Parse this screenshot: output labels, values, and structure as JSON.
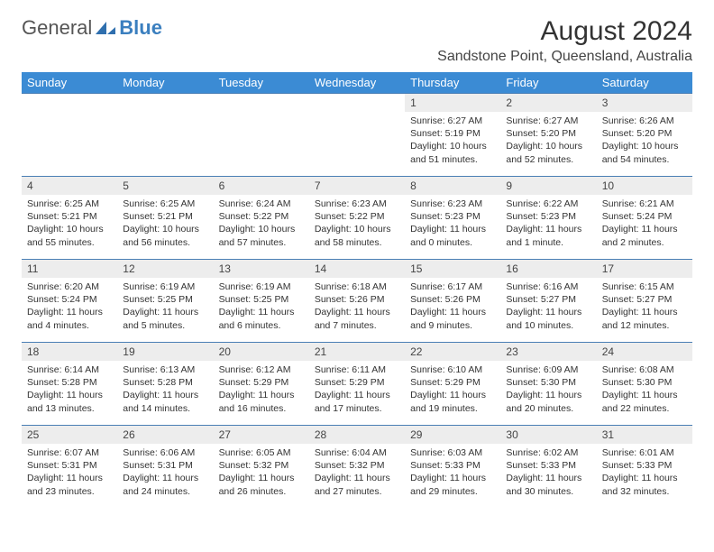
{
  "logo": {
    "text1": "General",
    "text2": "Blue"
  },
  "title": "August 2024",
  "location": "Sandstone Point, Queensland, Australia",
  "colors": {
    "header_bg": "#3b8bd4",
    "header_fg": "#ffffff",
    "daynum_bg": "#ededed",
    "row_border": "#4a7fb5",
    "logo_blue": "#3b7fbf"
  },
  "day_names": [
    "Sunday",
    "Monday",
    "Tuesday",
    "Wednesday",
    "Thursday",
    "Friday",
    "Saturday"
  ],
  "weeks": [
    [
      {
        "n": "",
        "sr": "",
        "ss": "",
        "dl": ""
      },
      {
        "n": "",
        "sr": "",
        "ss": "",
        "dl": ""
      },
      {
        "n": "",
        "sr": "",
        "ss": "",
        "dl": ""
      },
      {
        "n": "",
        "sr": "",
        "ss": "",
        "dl": ""
      },
      {
        "n": "1",
        "sr": "Sunrise: 6:27 AM",
        "ss": "Sunset: 5:19 PM",
        "dl": "Daylight: 10 hours and 51 minutes."
      },
      {
        "n": "2",
        "sr": "Sunrise: 6:27 AM",
        "ss": "Sunset: 5:20 PM",
        "dl": "Daylight: 10 hours and 52 minutes."
      },
      {
        "n": "3",
        "sr": "Sunrise: 6:26 AM",
        "ss": "Sunset: 5:20 PM",
        "dl": "Daylight: 10 hours and 54 minutes."
      }
    ],
    [
      {
        "n": "4",
        "sr": "Sunrise: 6:25 AM",
        "ss": "Sunset: 5:21 PM",
        "dl": "Daylight: 10 hours and 55 minutes."
      },
      {
        "n": "5",
        "sr": "Sunrise: 6:25 AM",
        "ss": "Sunset: 5:21 PM",
        "dl": "Daylight: 10 hours and 56 minutes."
      },
      {
        "n": "6",
        "sr": "Sunrise: 6:24 AM",
        "ss": "Sunset: 5:22 PM",
        "dl": "Daylight: 10 hours and 57 minutes."
      },
      {
        "n": "7",
        "sr": "Sunrise: 6:23 AM",
        "ss": "Sunset: 5:22 PM",
        "dl": "Daylight: 10 hours and 58 minutes."
      },
      {
        "n": "8",
        "sr": "Sunrise: 6:23 AM",
        "ss": "Sunset: 5:23 PM",
        "dl": "Daylight: 11 hours and 0 minutes."
      },
      {
        "n": "9",
        "sr": "Sunrise: 6:22 AM",
        "ss": "Sunset: 5:23 PM",
        "dl": "Daylight: 11 hours and 1 minute."
      },
      {
        "n": "10",
        "sr": "Sunrise: 6:21 AM",
        "ss": "Sunset: 5:24 PM",
        "dl": "Daylight: 11 hours and 2 minutes."
      }
    ],
    [
      {
        "n": "11",
        "sr": "Sunrise: 6:20 AM",
        "ss": "Sunset: 5:24 PM",
        "dl": "Daylight: 11 hours and 4 minutes."
      },
      {
        "n": "12",
        "sr": "Sunrise: 6:19 AM",
        "ss": "Sunset: 5:25 PM",
        "dl": "Daylight: 11 hours and 5 minutes."
      },
      {
        "n": "13",
        "sr": "Sunrise: 6:19 AM",
        "ss": "Sunset: 5:25 PM",
        "dl": "Daylight: 11 hours and 6 minutes."
      },
      {
        "n": "14",
        "sr": "Sunrise: 6:18 AM",
        "ss": "Sunset: 5:26 PM",
        "dl": "Daylight: 11 hours and 7 minutes."
      },
      {
        "n": "15",
        "sr": "Sunrise: 6:17 AM",
        "ss": "Sunset: 5:26 PM",
        "dl": "Daylight: 11 hours and 9 minutes."
      },
      {
        "n": "16",
        "sr": "Sunrise: 6:16 AM",
        "ss": "Sunset: 5:27 PM",
        "dl": "Daylight: 11 hours and 10 minutes."
      },
      {
        "n": "17",
        "sr": "Sunrise: 6:15 AM",
        "ss": "Sunset: 5:27 PM",
        "dl": "Daylight: 11 hours and 12 minutes."
      }
    ],
    [
      {
        "n": "18",
        "sr": "Sunrise: 6:14 AM",
        "ss": "Sunset: 5:28 PM",
        "dl": "Daylight: 11 hours and 13 minutes."
      },
      {
        "n": "19",
        "sr": "Sunrise: 6:13 AM",
        "ss": "Sunset: 5:28 PM",
        "dl": "Daylight: 11 hours and 14 minutes."
      },
      {
        "n": "20",
        "sr": "Sunrise: 6:12 AM",
        "ss": "Sunset: 5:29 PM",
        "dl": "Daylight: 11 hours and 16 minutes."
      },
      {
        "n": "21",
        "sr": "Sunrise: 6:11 AM",
        "ss": "Sunset: 5:29 PM",
        "dl": "Daylight: 11 hours and 17 minutes."
      },
      {
        "n": "22",
        "sr": "Sunrise: 6:10 AM",
        "ss": "Sunset: 5:29 PM",
        "dl": "Daylight: 11 hours and 19 minutes."
      },
      {
        "n": "23",
        "sr": "Sunrise: 6:09 AM",
        "ss": "Sunset: 5:30 PM",
        "dl": "Daylight: 11 hours and 20 minutes."
      },
      {
        "n": "24",
        "sr": "Sunrise: 6:08 AM",
        "ss": "Sunset: 5:30 PM",
        "dl": "Daylight: 11 hours and 22 minutes."
      }
    ],
    [
      {
        "n": "25",
        "sr": "Sunrise: 6:07 AM",
        "ss": "Sunset: 5:31 PM",
        "dl": "Daylight: 11 hours and 23 minutes."
      },
      {
        "n": "26",
        "sr": "Sunrise: 6:06 AM",
        "ss": "Sunset: 5:31 PM",
        "dl": "Daylight: 11 hours and 24 minutes."
      },
      {
        "n": "27",
        "sr": "Sunrise: 6:05 AM",
        "ss": "Sunset: 5:32 PM",
        "dl": "Daylight: 11 hours and 26 minutes."
      },
      {
        "n": "28",
        "sr": "Sunrise: 6:04 AM",
        "ss": "Sunset: 5:32 PM",
        "dl": "Daylight: 11 hours and 27 minutes."
      },
      {
        "n": "29",
        "sr": "Sunrise: 6:03 AM",
        "ss": "Sunset: 5:33 PM",
        "dl": "Daylight: 11 hours and 29 minutes."
      },
      {
        "n": "30",
        "sr": "Sunrise: 6:02 AM",
        "ss": "Sunset: 5:33 PM",
        "dl": "Daylight: 11 hours and 30 minutes."
      },
      {
        "n": "31",
        "sr": "Sunrise: 6:01 AM",
        "ss": "Sunset: 5:33 PM",
        "dl": "Daylight: 11 hours and 32 minutes."
      }
    ]
  ]
}
